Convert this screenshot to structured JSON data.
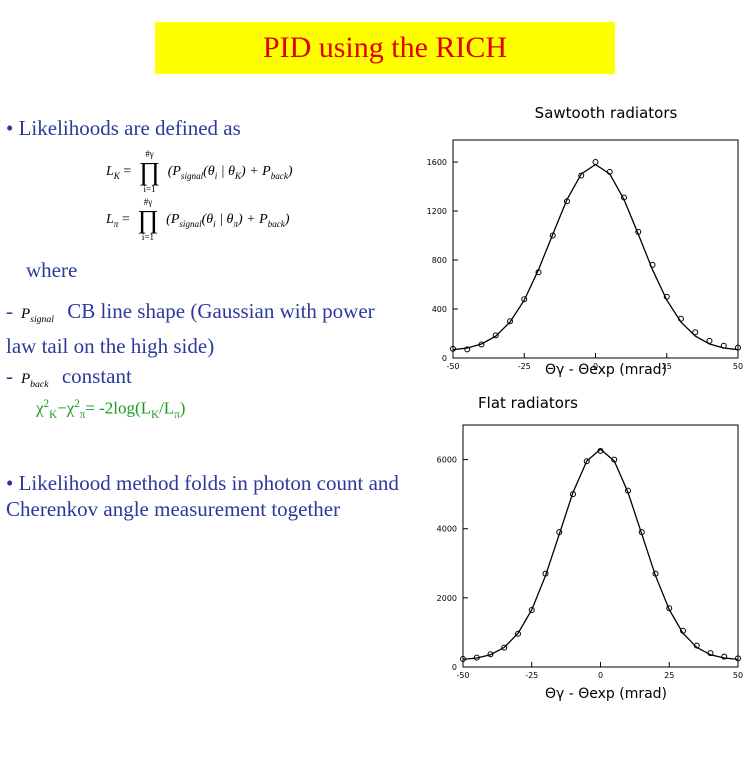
{
  "title": "PID using the RICH",
  "bullet1": "• Likelihoods are defined as",
  "formulas": [
    {
      "lhs": "L",
      "lhs_sub": "K",
      "eq": "=",
      "prod": "∏",
      "upper": "#γ",
      "lower": "i=1",
      "body": "(P",
      "sub1": "signal",
      "mid": "(θ",
      "sub2": "i",
      "mid2": " | θ",
      "sub3": "K",
      "mid3": ") + P",
      "sub4": "back",
      "end": ")"
    },
    {
      "lhs": "L",
      "lhs_sub": "π",
      "eq": "=",
      "prod": "∏",
      "upper": "#γ",
      "lower": "i=1",
      "body": "(P",
      "sub1": "signal",
      "mid": "(θ",
      "sub2": "i",
      "mid2": " | θ",
      "sub3": "π",
      "mid3": ") + P",
      "sub4": "back",
      "end": ")"
    }
  ],
  "where": "where",
  "items": [
    {
      "dash": "-",
      "symbol": "P",
      "symbol_sub": "signal",
      "text": "CB line shape (Gaussian with power law tail on the high side)"
    },
    {
      "dash": "-",
      "symbol": "P",
      "symbol_sub": "back",
      "text": "constant"
    }
  ],
  "chi": [
    "χ",
    "2",
    "K",
    "−χ",
    "2",
    "π",
    "= -2log(L",
    "K",
    "/L",
    "π",
    ")"
  ],
  "bullet2": "• Likelihood method folds in photon count and Cherenkov angle measurement together",
  "chart_data": [
    {
      "type": "line",
      "title": "Sawtooth radiators",
      "x_label": "Θγ - Θexp (mrad)",
      "x": [
        -50,
        -45,
        -40,
        -35,
        -30,
        -25,
        -20,
        -15,
        -10,
        -5,
        0,
        5,
        10,
        15,
        20,
        25,
        30,
        35,
        40,
        45,
        50
      ],
      "series": [
        {
          "color": "#000000",
          "values": [
            68,
            82,
            114,
            179,
            293,
            473,
            721,
            1011,
            1294,
            1503,
            1580,
            1503,
            1294,
            1011,
            721,
            473,
            293,
            179,
            114,
            82,
            68
          ]
        },
        {
          "color": "#000000",
          "marker": "circle",
          "values": [
            75,
            70,
            110,
            185,
            300,
            480,
            700,
            1000,
            1280,
            1490,
            1600,
            1520,
            1310,
            1030,
            760,
            500,
            320,
            210,
            140,
            100,
            85
          ]
        }
      ],
      "xlim": [
        -50,
        50
      ],
      "xticks": [
        -50,
        -25,
        0,
        25,
        50
      ],
      "ylim": [
        0,
        1780
      ],
      "yticks": [
        0,
        400,
        800,
        1200,
        1600
      ]
    },
    {
      "type": "line",
      "title": "Flat radiators",
      "x_label": "Θγ - Θexp (mrad)",
      "x": [
        -50,
        -45,
        -40,
        -35,
        -30,
        -25,
        -20,
        -15,
        -10,
        -5,
        0,
        5,
        10,
        15,
        20,
        25,
        30,
        35,
        40,
        45,
        50
      ],
      "series": [
        {
          "color": "#000000",
          "values": [
            220,
            259,
            356,
            566,
            975,
            1658,
            2640,
            3842,
            5051,
            5960,
            6300,
            5960,
            5051,
            3842,
            2640,
            1658,
            975,
            566,
            356,
            259,
            220
          ]
        },
        {
          "color": "#000000",
          "marker": "circle",
          "values": [
            230,
            270,
            370,
            560,
            960,
            1650,
            2700,
            3900,
            5000,
            5950,
            6250,
            6000,
            5100,
            3900,
            2700,
            1700,
            1050,
            620,
            400,
            300,
            250
          ]
        }
      ],
      "xlim": [
        -50,
        50
      ],
      "xticks": [
        -50,
        -25,
        0,
        25,
        50
      ],
      "ylim": [
        0,
        7000
      ],
      "yticks": [
        0,
        2000,
        4000,
        6000
      ]
    }
  ]
}
